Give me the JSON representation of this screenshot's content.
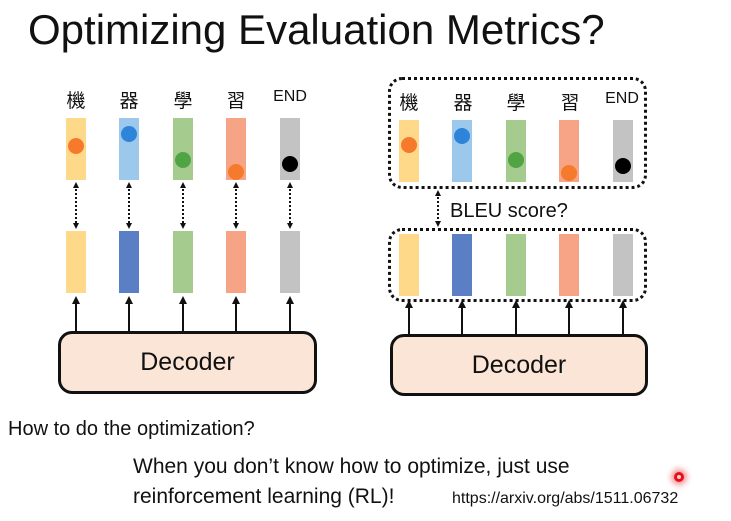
{
  "slide": {
    "title": "Optimizing Evaluation Metrics?",
    "tokens": [
      "機",
      "器",
      "學",
      "習",
      "END"
    ],
    "decoder_label": "Decoder",
    "bleu_label": "BLEU score?",
    "question": "How to do the optimization?",
    "answer_line1": "When you don’t know how to optimize, just use",
    "answer_line2": "reinforcement learning (RL)!",
    "url": "https://arxiv.org/abs/1511.06732"
  },
  "colors": {
    "yellow": "#ffd98a",
    "blue": "#5b7fc4",
    "lightblue": "#9cc8ec",
    "green": "#a6cb8f",
    "salmon": "#f7a486",
    "gray": "#c3c3c3",
    "dot_orange": "#f57a2c",
    "dot_blue": "#2e84d8",
    "dot_green": "#4fa544",
    "dot_black": "#000000",
    "decoder_fill": "#fbe5d6"
  },
  "diagram": {
    "left_target_colors": [
      "yellow",
      "lightblue",
      "green",
      "salmon",
      "gray"
    ],
    "left_dot_colors": [
      "dot_orange",
      "dot_blue",
      "dot_green",
      "dot_orange",
      "dot_black"
    ],
    "output_colors": [
      "yellow",
      "blue",
      "green",
      "salmon",
      "gray"
    ]
  }
}
